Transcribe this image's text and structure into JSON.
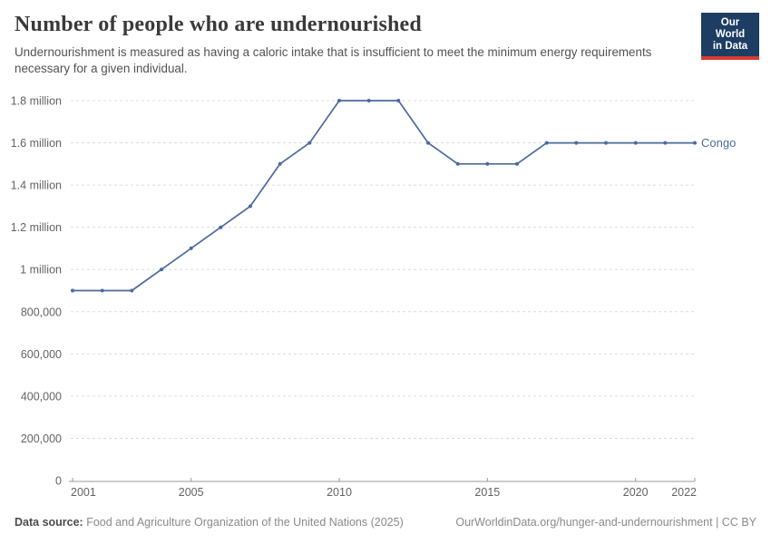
{
  "header": {
    "title": "Number of people who are undernourished",
    "subtitle": "Undernourishment is measured as having a caloric intake that is insufficient to meet the minimum energy requirements necessary for a given individual."
  },
  "logo": {
    "line1": "Our World",
    "line2": "in Data",
    "bg_color": "#1d3d63",
    "accent_color": "#d73c34"
  },
  "chart_data": {
    "type": "line",
    "title": "Number of people who are undernourished",
    "x": [
      2001,
      2002,
      2003,
      2004,
      2005,
      2006,
      2007,
      2008,
      2009,
      2010,
      2011,
      2012,
      2013,
      2014,
      2015,
      2016,
      2017,
      2018,
      2019,
      2020,
      2021,
      2022
    ],
    "series": [
      {
        "name": "Congo",
        "color": "#4C6A9C",
        "values": [
          900000,
          900000,
          900000,
          1000000,
          1100000,
          1200000,
          1300000,
          1500000,
          1600000,
          1800000,
          1800000,
          1800000,
          1600000,
          1500000,
          1500000,
          1500000,
          1600000,
          1600000,
          1600000,
          1600000,
          1600000,
          1600000
        ]
      }
    ],
    "xlim": [
      2001,
      2022
    ],
    "ylim": [
      0,
      1800000
    ],
    "yticks": [
      {
        "value": 0,
        "label": "0"
      },
      {
        "value": 200000,
        "label": "200,000"
      },
      {
        "value": 400000,
        "label": "400,000"
      },
      {
        "value": 600000,
        "label": "600,000"
      },
      {
        "value": 800000,
        "label": "800,000"
      },
      {
        "value": 1000000,
        "label": "1 million"
      },
      {
        "value": 1200000,
        "label": "1.2 million"
      },
      {
        "value": 1400000,
        "label": "1.4 million"
      },
      {
        "value": 1600000,
        "label": "1.6 million"
      },
      {
        "value": 1800000,
        "label": "1.8 million"
      }
    ],
    "xticks": [
      {
        "value": 2001,
        "label": "2001"
      },
      {
        "value": 2005,
        "label": "2005"
      },
      {
        "value": 2010,
        "label": "2010"
      },
      {
        "value": 2015,
        "label": "2015"
      },
      {
        "value": 2020,
        "label": "2020"
      },
      {
        "value": 2022,
        "label": "2022"
      }
    ],
    "grid": true,
    "grid_color": "#dcdcdc",
    "axis_color": "#9a9a9a",
    "tick_label_color": "#636363",
    "legend_position": "end-of-line"
  },
  "footer": {
    "source_label": "Data source:",
    "source_text": "Food and Agriculture Organization of the United Nations (2025)",
    "link_text": "OurWorldinData.org/hunger-and-undernourishment | CC BY"
  }
}
